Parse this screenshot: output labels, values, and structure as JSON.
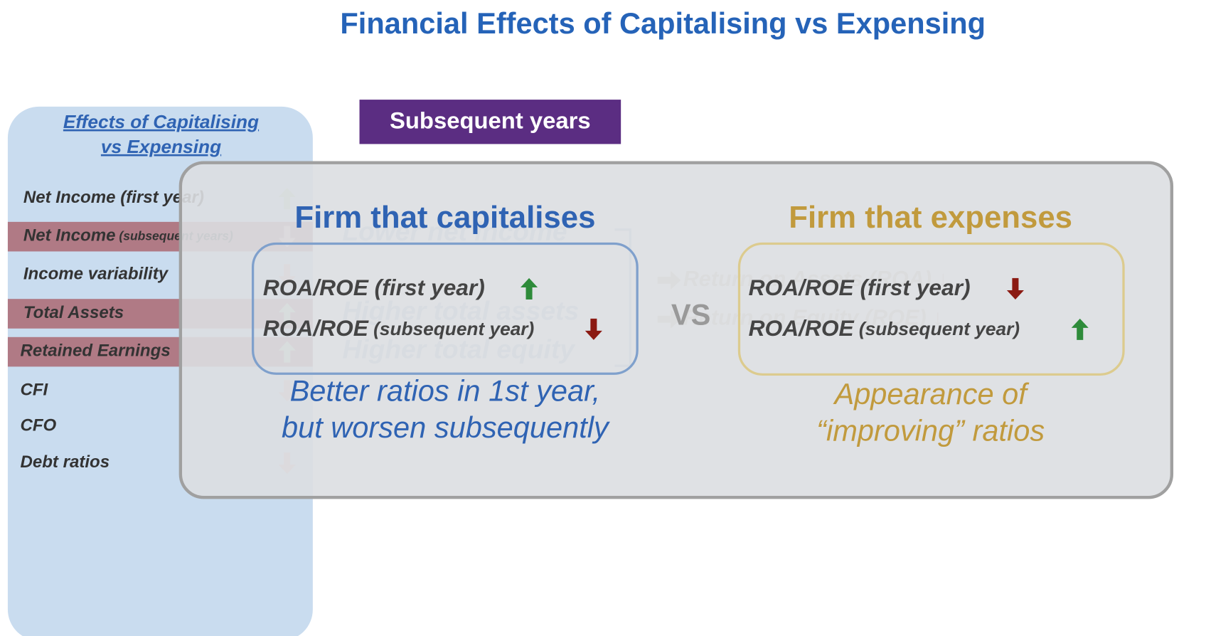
{
  "title": "Financial Effects of Capitalising vs Expensing",
  "sidebar": {
    "heading": [
      "Effects of Capitalising",
      "vs Expensing"
    ],
    "items": [
      {
        "label": "Net Income",
        "qualifier": "(first year)"
      },
      {
        "label": "Net Income",
        "qualifier": "(subsequent years)"
      },
      {
        "label": "Income variability",
        "qualifier": null
      },
      {
        "label": "Total Assets",
        "qualifier": null
      },
      {
        "label": "Retained Earnings",
        "qualifier": null
      },
      {
        "label": "CFI",
        "qualifier": null
      },
      {
        "label": "CFO",
        "qualifier": null
      },
      {
        "label": "Debt ratios",
        "qualifier": null
      }
    ]
  },
  "badge": "Subsequent years",
  "background": {
    "effects": [
      "Lower net income",
      "Higher total assets",
      "Higher total equity"
    ],
    "ratios": [
      "Return on Assets (ROA) ↓",
      "Return on Equity (ROE) ↓"
    ]
  },
  "vs": "VS",
  "capitalise": {
    "heading": "Firm that capitalises",
    "rows": [
      {
        "label": "ROA/ROE",
        "qualifier": "(first year)"
      },
      {
        "label": "ROA/ROE",
        "qualifier": "(subsequent year)"
      }
    ],
    "summary": [
      "Better ratios in 1st year,",
      "but worsen subsequently"
    ]
  },
  "expense": {
    "heading": "Firm that expenses",
    "rows": [
      {
        "label": "ROA/ROE",
        "qualifier": "(first year)"
      },
      {
        "label": "ROA/ROE",
        "qualifier": "(subsequent year)"
      }
    ],
    "summary": [
      "Appearance of",
      "“improving” ratios"
    ]
  }
}
